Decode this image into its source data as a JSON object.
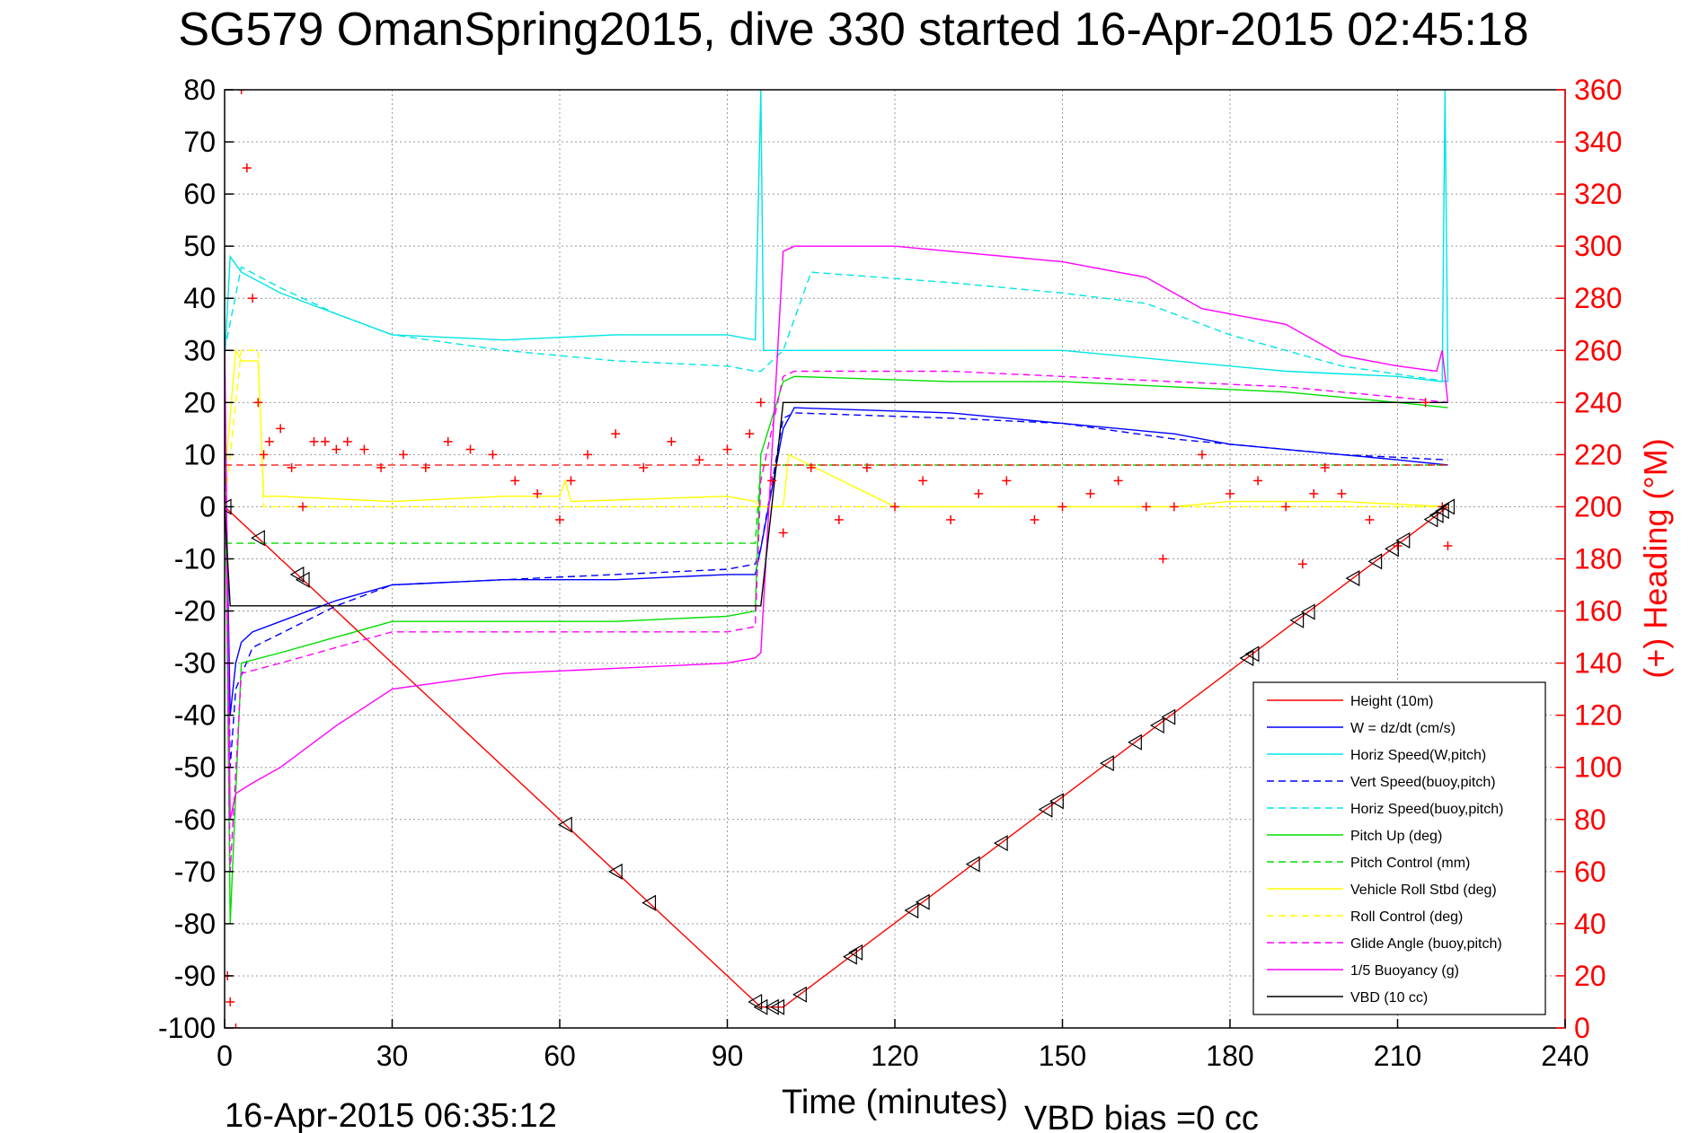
{
  "chart_data": {
    "type": "line",
    "title": "SG579 OmanSpring2015, dive 330 started 16-Apr-2015 02:45:18",
    "xlabel": "Time (minutes)",
    "ylabel_right": "(+) Heading (°M)",
    "footer_left": "16-Apr-2015 06:35:12",
    "footer_right": "VBD bias =0 cc",
    "xlim": [
      0,
      240
    ],
    "ylim": [
      -100,
      80
    ],
    "ylim_right": [
      0,
      360
    ],
    "x_ticks": [
      "0",
      "30",
      "60",
      "90",
      "120",
      "150",
      "180",
      "210",
      "240"
    ],
    "y_ticks": [
      "80",
      "70",
      "60",
      "50",
      "40",
      "30",
      "20",
      "10",
      "0",
      "-10",
      "-20",
      "-30",
      "-40",
      "-50",
      "-60",
      "-70",
      "-80",
      "-90",
      "-100"
    ],
    "y_ticks_right": [
      "360",
      "340",
      "320",
      "300",
      "280",
      "260",
      "240",
      "220",
      "200",
      "180",
      "160",
      "140",
      "120",
      "100",
      "80",
      "60",
      "40",
      "20",
      "0"
    ],
    "grid": true,
    "legend_position": "bottom-right",
    "colors": {
      "height": "#ff0000",
      "w": "#0000ff",
      "horiz_speed": "#00e5e5",
      "vert_speed_buoy": "#0000ff",
      "horiz_speed_buoy": "#00e5e5",
      "pitch_up": "#00dd00",
      "pitch_control": "#00dd00",
      "roll": "#ffff00",
      "roll_control": "#ffff00",
      "glide_angle": "#ff00ff",
      "buoyancy": "#ff00ff",
      "vbd": "#000000",
      "heading": "#ff0000"
    },
    "series": [
      {
        "key": "height",
        "name": "Height (10m)",
        "style": "solid",
        "x": [
          0,
          96,
          100,
          219
        ],
        "y": [
          0,
          -96,
          -96,
          0
        ]
      },
      {
        "key": "w",
        "name": "W = dz/dt (cm/s)",
        "style": "solid",
        "x": [
          0,
          1,
          2,
          3,
          5,
          10,
          20,
          30,
          50,
          70,
          90,
          95,
          96,
          100,
          102,
          130,
          150,
          170,
          180,
          200,
          210,
          219
        ],
        "y": [
          20,
          -40,
          -30,
          -26,
          -24,
          -22,
          -18,
          -15,
          -14,
          -14,
          -13,
          -13,
          -8,
          15,
          19,
          18,
          16,
          14,
          12,
          10,
          9,
          8
        ]
      },
      {
        "key": "horiz_speed",
        "name": "Horiz Speed(W,pitch)",
        "style": "solid",
        "x": [
          0,
          1,
          3,
          10,
          20,
          30,
          50,
          70,
          90,
          95,
          96,
          96.5,
          97,
          100,
          120,
          150,
          170,
          190,
          210,
          218,
          218.5,
          219
        ],
        "y": [
          28,
          48,
          45,
          41,
          37,
          33,
          32,
          33,
          33,
          32,
          80,
          30,
          30,
          30,
          30,
          30,
          28,
          26,
          25,
          24,
          80,
          24
        ]
      },
      {
        "key": "vert_speed_buoy",
        "name": "Vert Speed(buoy,pitch)",
        "style": "dashed",
        "x": [
          0,
          1,
          2,
          5,
          20,
          30,
          50,
          70,
          90,
          95,
          96,
          100,
          102,
          130,
          150,
          170,
          180,
          200,
          219
        ],
        "y": [
          20,
          -50,
          -35,
          -27,
          -19,
          -15,
          -14,
          -13,
          -12,
          -11,
          -8,
          17,
          18,
          17,
          16,
          13,
          12,
          10,
          9
        ]
      },
      {
        "key": "horiz_speed_buoy",
        "name": "Horiz Speed(buoy,pitch)",
        "style": "dashed",
        "x": [
          0,
          3,
          10,
          20,
          30,
          50,
          70,
          90,
          95,
          96,
          100,
          105,
          130,
          150,
          165,
          180,
          200,
          219
        ],
        "y": [
          30,
          46,
          42,
          37,
          33,
          30,
          28,
          27,
          26,
          26,
          30,
          45,
          43,
          41,
          39,
          33,
          27,
          24
        ]
      },
      {
        "key": "pitch_up",
        "name": "Pitch Up (deg)",
        "style": "solid",
        "x": [
          0,
          1,
          3,
          10,
          20,
          30,
          50,
          70,
          90,
          95,
          96,
          100,
          102,
          130,
          150,
          170,
          190,
          210,
          219
        ],
        "y": [
          20,
          -80,
          -30,
          -28,
          -25,
          -22,
          -22,
          -22,
          -21,
          -20,
          10,
          24,
          25,
          24,
          24,
          23,
          22,
          20,
          19
        ]
      },
      {
        "key": "pitch_control",
        "name": "Pitch Control (mm)",
        "style": "dashed",
        "x": [
          0,
          2,
          95,
          96,
          219
        ],
        "y": [
          -7,
          -7,
          -7,
          8,
          8
        ]
      },
      {
        "key": "roll",
        "name": "Vehicle Roll Stbd (deg)",
        "style": "solid",
        "x": [
          0,
          2,
          3,
          6,
          7,
          10,
          30,
          50,
          60,
          61,
          62,
          90,
          95,
          96,
          100,
          101,
          120,
          150,
          170,
          180,
          200,
          219
        ],
        "y": [
          5,
          30,
          28,
          28,
          2,
          2,
          1,
          2,
          2,
          5,
          1,
          2,
          1,
          0,
          0,
          10,
          0,
          0,
          0,
          1,
          1,
          0
        ]
      },
      {
        "key": "roll_control",
        "name": "Roll Control (deg)",
        "style": "dashed",
        "x": [
          0,
          3,
          6,
          7,
          95,
          96,
          219
        ],
        "y": [
          0,
          30,
          30,
          0,
          0,
          0,
          0
        ]
      },
      {
        "key": "glide_angle",
        "name": "Glide Angle (buoy,pitch)",
        "style": "dashed",
        "x": [
          0,
          1,
          3,
          10,
          20,
          30,
          50,
          70,
          90,
          95,
          96,
          100,
          102,
          130,
          150,
          170,
          190,
          210,
          219
        ],
        "y": [
          20,
          -70,
          -32,
          -30,
          -27,
          -24,
          -24,
          -24,
          -24,
          -23,
          5,
          25,
          26,
          26,
          25,
          24,
          23,
          21,
          20
        ]
      },
      {
        "key": "buoyancy",
        "name": "1/5 Buoyancy (g)",
        "style": "solid",
        "x": [
          0,
          1,
          2,
          5,
          10,
          20,
          30,
          50,
          70,
          90,
          95,
          96,
          100,
          102,
          120,
          150,
          165,
          170,
          175,
          190,
          200,
          210,
          217,
          218,
          219
        ],
        "y": [
          33,
          -60,
          -55,
          -53,
          -50,
          -42,
          -35,
          -32,
          -31,
          -30,
          -29,
          -28,
          49,
          50,
          50,
          47,
          44,
          41,
          38,
          35,
          29,
          27,
          26,
          30,
          20
        ]
      },
      {
        "key": "vbd",
        "name": "VBD (10 cc)",
        "style": "solid",
        "x": [
          0,
          1,
          95,
          96,
          100,
          219
        ],
        "y": [
          0,
          -19,
          -19,
          -19,
          20,
          20
        ]
      }
    ],
    "heading": {
      "name": "Heading",
      "x": [
        0.5,
        1,
        2,
        3,
        4,
        5,
        6,
        7,
        8,
        10,
        12,
        14,
        16,
        18,
        20,
        22,
        25,
        28,
        32,
        36,
        40,
        44,
        48,
        52,
        56,
        60,
        62,
        65,
        70,
        75,
        80,
        85,
        90,
        94,
        96,
        98,
        100,
        105,
        110,
        115,
        120,
        125,
        130,
        135,
        140,
        145,
        150,
        155,
        160,
        165,
        168,
        170,
        175,
        180,
        185,
        190,
        193,
        195,
        197,
        200,
        205,
        210,
        215,
        218,
        219
      ],
      "y": [
        20,
        10,
        0,
        360,
        330,
        280,
        240,
        220,
        225,
        230,
        215,
        200,
        225,
        225,
        222,
        225,
        222,
        215,
        220,
        215,
        225,
        222,
        220,
        210,
        205,
        195,
        210,
        220,
        228,
        215,
        225,
        218,
        222,
        228,
        240,
        210,
        190,
        215,
        195,
        215,
        200,
        210,
        195,
        205,
        210,
        195,
        200,
        205,
        210,
        200,
        180,
        200,
        220,
        205,
        210,
        200,
        178,
        205,
        215,
        205,
        195,
        185,
        240,
        200,
        185
      ]
    },
    "height_markers": [
      0,
      6,
      13,
      14,
      61,
      70,
      76,
      95,
      96,
      98,
      99,
      103,
      112,
      113,
      123,
      125,
      134,
      139,
      147,
      149,
      158,
      163,
      167,
      169,
      183,
      184,
      192,
      194,
      202,
      206,
      209,
      211,
      216,
      217,
      218,
      219
    ]
  }
}
